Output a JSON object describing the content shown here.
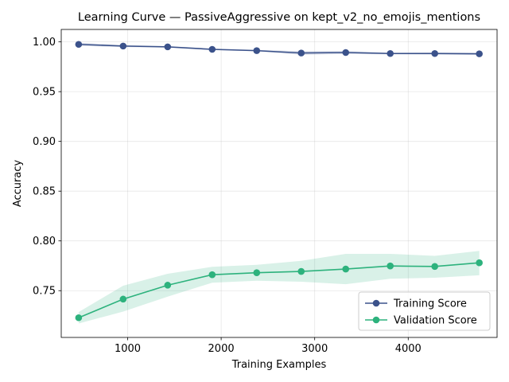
{
  "chart_data": {
    "type": "line",
    "title": "Learning Curve — PassiveAggressive on kept_v2_no_emojis_mentions",
    "xlabel": "Training Examples",
    "ylabel": "Accuracy",
    "xlim": [
      290,
      4950
    ],
    "ylim": [
      0.703,
      1.0125
    ],
    "x_ticks": [
      1000,
      2000,
      3000,
      4000
    ],
    "y_ticks": [
      0.75,
      0.8,
      0.85,
      0.9,
      0.95,
      1.0
    ],
    "grid": true,
    "legend_position": "lower-right",
    "x": [
      476,
      952,
      1428,
      1904,
      2380,
      2856,
      3332,
      3808,
      4284,
      4760
    ],
    "series": [
      {
        "name": "Training Score",
        "color": "#3b528b",
        "values": [
          0.9975,
          0.9958,
          0.995,
          0.9925,
          0.9912,
          0.9888,
          0.9893,
          0.9883,
          0.9883,
          0.988
        ],
        "std_lower": [
          0.996,
          0.9948,
          0.9942,
          0.9918,
          0.9905,
          0.987,
          0.9878,
          0.9875,
          0.9872,
          0.9868
        ],
        "std_upper": [
          0.999,
          0.9968,
          0.9958,
          0.9932,
          0.992,
          0.9906,
          0.9908,
          0.9891,
          0.9894,
          0.9892
        ]
      },
      {
        "name": "Validation Score",
        "color": "#2db27d",
        "values": [
          0.7228,
          0.7415,
          0.7555,
          0.766,
          0.768,
          0.7693,
          0.7717,
          0.7748,
          0.7743,
          0.778
        ],
        "std_lower": [
          0.717,
          0.729,
          0.744,
          0.758,
          0.76,
          0.759,
          0.7565,
          0.762,
          0.763,
          0.7655
        ],
        "std_upper": [
          0.7285,
          0.755,
          0.767,
          0.774,
          0.776,
          0.78,
          0.787,
          0.787,
          0.785,
          0.79
        ]
      }
    ]
  }
}
